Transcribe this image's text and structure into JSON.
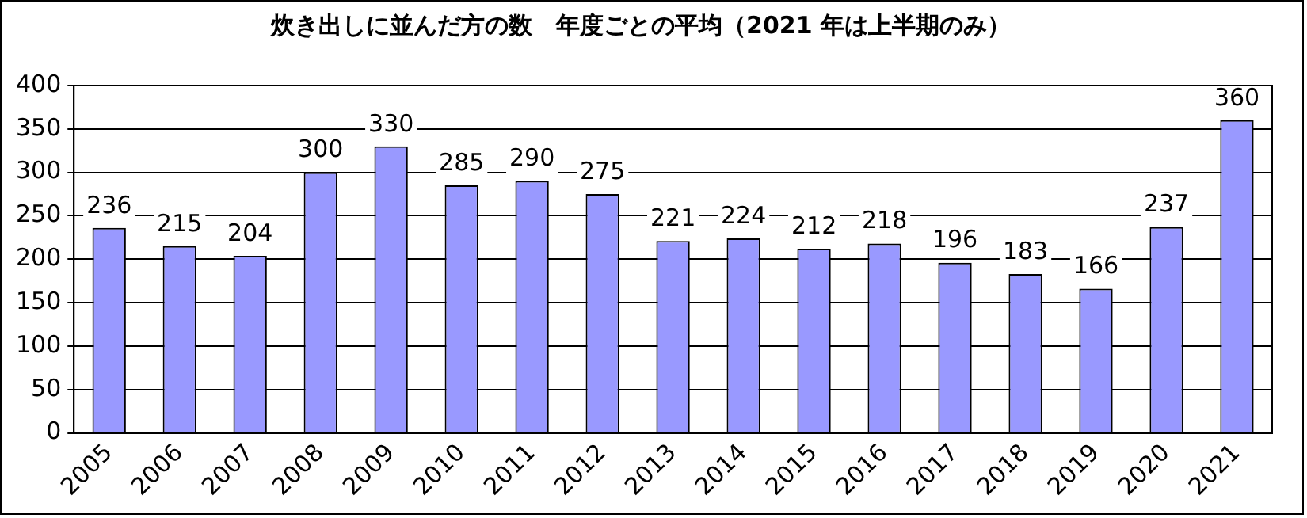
{
  "chart_data": {
    "type": "bar",
    "title": "炊き出しに並んだ方の数　年度ごとの平均（2021 年は上半期のみ）",
    "categories": [
      "2005",
      "2006",
      "2007",
      "2008",
      "2009",
      "2010",
      "2011",
      "2012",
      "2013",
      "2014",
      "2015",
      "2016",
      "2017",
      "2018",
      "2019",
      "2020",
      "2021"
    ],
    "values": [
      236,
      215,
      204,
      300,
      330,
      285,
      290,
      275,
      221,
      224,
      212,
      218,
      196,
      183,
      166,
      237,
      360
    ],
    "color": "#9999ff",
    "ylim": [
      0,
      400
    ],
    "yticks": [
      0,
      50,
      100,
      150,
      200,
      250,
      300,
      350,
      400
    ],
    "grid": "y",
    "data_labels": true,
    "legend": false
  }
}
